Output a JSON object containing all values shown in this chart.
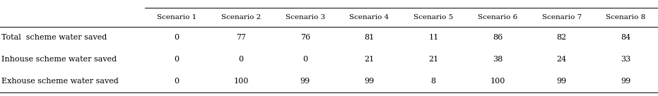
{
  "columns": [
    "Scenario 1",
    "Scenario 2",
    "Scenario 3",
    "Scenario 4",
    "Scenario 5",
    "Scenario 6",
    "Scenario 7",
    "Scenario 8"
  ],
  "row_labels": [
    "Total  scheme water saved",
    "Inhouse scheme water saved",
    "Exhouse scheme water saved"
  ],
  "rows": [
    [
      "0",
      "77",
      "76",
      "81",
      "11",
      "86",
      "82",
      "84"
    ],
    [
      "0",
      "0",
      "0",
      "21",
      "21",
      "38",
      "24",
      "33"
    ],
    [
      "0",
      "100",
      "99",
      "99",
      "8",
      "100",
      "99",
      "99"
    ]
  ],
  "header_fontsize": 7.5,
  "cell_fontsize": 8.0,
  "bg_color": "#ffffff",
  "text_color": "#000000",
  "line_color": "#000000",
  "figwidth": 9.31,
  "figheight": 1.36,
  "dpi": 100
}
